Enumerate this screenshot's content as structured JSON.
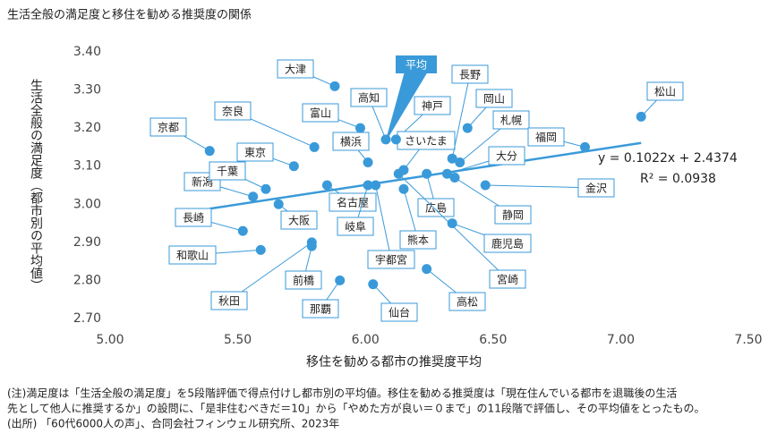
{
  "chart_data": {
    "type": "scatter",
    "title": "生活全般の満足度と移住を勧める推奨度の関係",
    "x_label": "移住を勧める都市の推奨度平均",
    "y_label": "生活全般の満足度（都市別の平均値）",
    "color": "#3a9ad9",
    "xlim": [
      5.0,
      7.5
    ],
    "xticks": [
      {
        "value": 5.0,
        "label": "5.00"
      },
      {
        "value": 5.5,
        "label": "5.50"
      },
      {
        "value": 6.0,
        "label": "6.00"
      },
      {
        "value": 6.5,
        "label": "6.50"
      },
      {
        "value": 7.0,
        "label": "7.00"
      },
      {
        "value": 7.5,
        "label": "7.50"
      }
    ],
    "ylim": [
      2.7,
      3.4
    ],
    "yticks": [
      {
        "value": 2.7,
        "label": "2.70"
      },
      {
        "value": 2.8,
        "label": "2.80"
      },
      {
        "value": 2.9,
        "label": "2.90"
      },
      {
        "value": 3.0,
        "label": "3.00"
      },
      {
        "value": 3.1,
        "label": "3.10"
      },
      {
        "value": 3.2,
        "label": "3.20"
      },
      {
        "value": 3.3,
        "label": "3.30"
      },
      {
        "value": 3.4,
        "label": "3.40"
      }
    ],
    "names": [
      "大津",
      "奈良",
      "京都",
      "東京",
      "富山",
      "高知",
      "横浜",
      "神戸",
      "さいたま",
      "長野",
      "岡山",
      "札幌",
      "福岡",
      "松山",
      "大分",
      "金沢",
      "静岡",
      "広島",
      "名古屋",
      "新潟",
      "千葉",
      "大阪",
      "長崎",
      "岐阜",
      "熊本",
      "宇都宮",
      "鹿児島",
      "宮崎",
      "和歌山",
      "秋田",
      "前橋",
      "那覇",
      "仙台",
      "高松"
    ],
    "x": [
      5.88,
      5.8,
      5.39,
      5.72,
      5.98,
      6.08,
      6.01,
      6.12,
      6.15,
      6.34,
      6.4,
      6.37,
      6.86,
      7.08,
      6.32,
      6.47,
      6.35,
      6.24,
      5.85,
      5.56,
      5.61,
      5.66,
      5.52,
      6.01,
      6.15,
      6.04,
      6.34,
      6.13,
      5.59,
      5.79,
      5.79,
      5.9,
      6.03,
      6.24
    ],
    "values": [
      3.31,
      3.15,
      3.14,
      3.1,
      3.2,
      3.17,
      3.11,
      3.17,
      3.09,
      3.12,
      3.2,
      3.11,
      3.15,
      3.23,
      3.08,
      3.05,
      3.07,
      3.08,
      3.05,
      3.02,
      3.04,
      3.0,
      2.93,
      3.05,
      3.04,
      3.05,
      2.95,
      3.08,
      2.88,
      2.9,
      2.89,
      2.8,
      2.79,
      2.83
    ],
    "average_label": "平均",
    "trendline": {
      "label": "y = 0.1022x + 2.4374",
      "slope": 0.1022,
      "intercept": 2.4374,
      "r2_label": "R² = 0.0938"
    },
    "notes": [
      "(注)満足度は「生活全般の満足度」を5段階評価で得点付けし都市別の平均値。移住を勧める推奨度は「現在住んでいる都市を退職後の生活",
      "先として他人に推奨するか」の設問に、「是非住むべきだ＝10」から「やめた方が良い＝０まで」の11段階で評価し、その平均値をとったもの。",
      "(出所) 「60代6000人の声」、合同会社フィンウェル研究所、2023年"
    ]
  }
}
